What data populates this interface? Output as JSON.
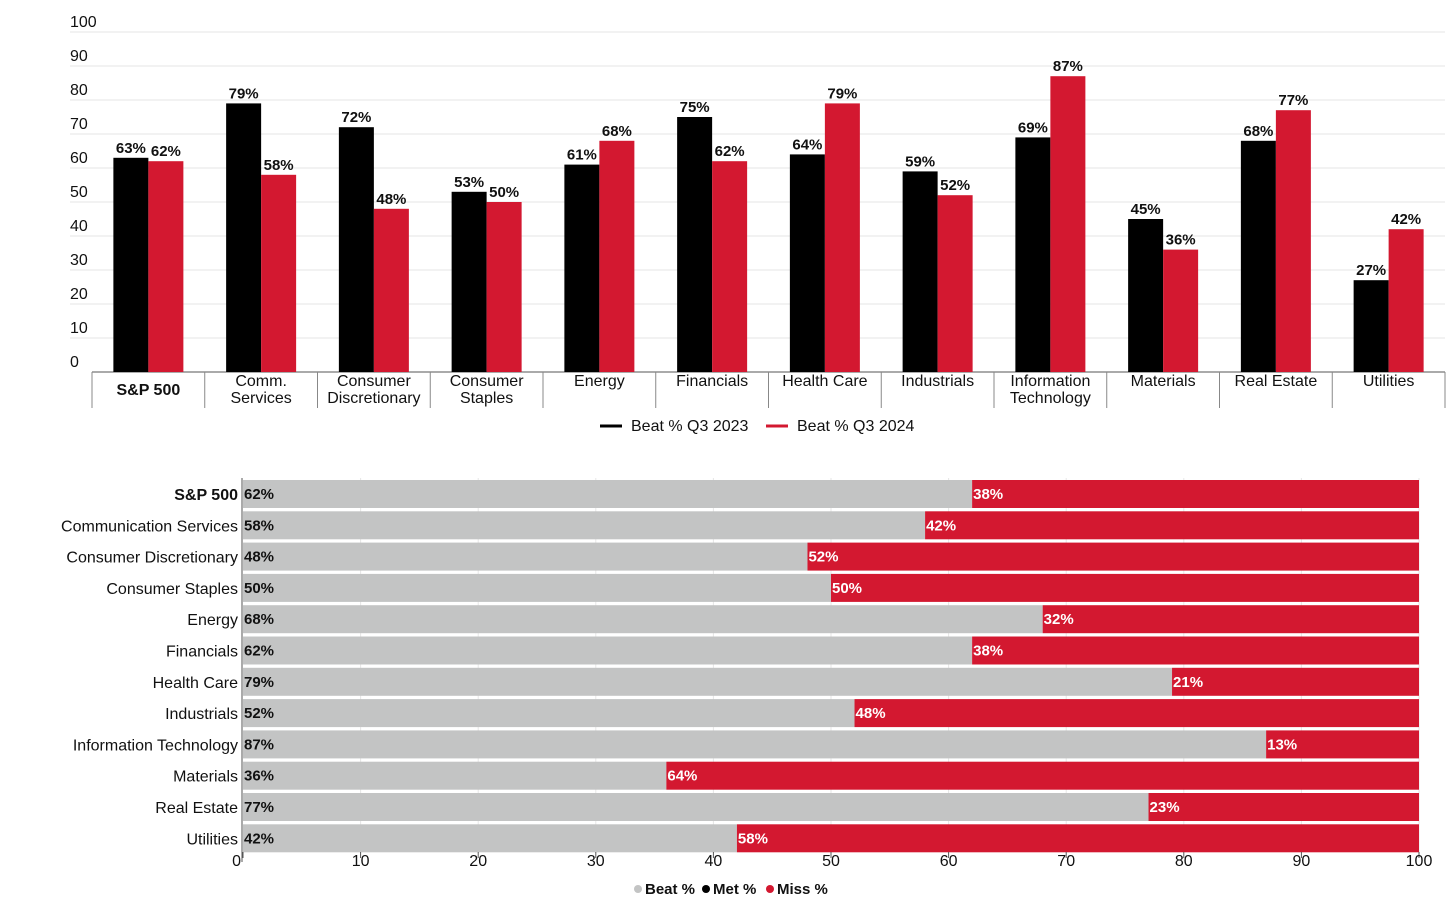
{
  "colors": {
    "q3_2023": "#000000",
    "q3_2024": "#d31830",
    "beat": "#c3c4c4",
    "met": "#000000",
    "miss": "#d31830"
  },
  "chart_data": [
    {
      "type": "bar",
      "title": "",
      "xlabel": "",
      "ylabel": "",
      "ylim": [
        0,
        100
      ],
      "yticks": [
        0,
        10,
        20,
        30,
        40,
        50,
        60,
        70,
        80,
        90,
        100
      ],
      "categories": [
        [
          "S&P 500"
        ],
        [
          "Comm.",
          "Services"
        ],
        [
          "Consumer",
          "Discretionary"
        ],
        [
          "Consumer",
          "Staples"
        ],
        [
          "Energy"
        ],
        [
          "Financials"
        ],
        [
          "Health Care"
        ],
        [
          "Industrials"
        ],
        [
          "Information",
          "Technology"
        ],
        [
          "Materials"
        ],
        [
          "Real Estate"
        ],
        [
          "Utilities"
        ]
      ],
      "series": [
        {
          "name": "Beat % Q3 2023",
          "values": [
            63,
            79,
            72,
            53,
            61,
            75,
            64,
            59,
            69,
            45,
            68,
            27
          ],
          "labels": [
            "63%",
            "79%",
            "72%",
            "53%",
            "61%",
            "75%",
            "64%",
            "59%",
            "69%",
            "45%",
            "68%",
            "27%"
          ]
        },
        {
          "name": "Beat % Q3 2024",
          "values": [
            62,
            58,
            48,
            50,
            68,
            62,
            79,
            52,
            87,
            36,
            77,
            42
          ],
          "labels": [
            "62%",
            "58%",
            "48%",
            "50%",
            "68%",
            "62%",
            "79%",
            "52%",
            "87%",
            "36%",
            "77%",
            "42%"
          ]
        }
      ],
      "legend": "bottom-center"
    },
    {
      "type": "stacked-bar-horizontal",
      "title": "",
      "xlabel": "",
      "ylabel": "",
      "xlim": [
        0,
        100
      ],
      "xticks": [
        0,
        10,
        20,
        30,
        40,
        50,
        60,
        70,
        80,
        90,
        100
      ],
      "categories": [
        "S&P 500",
        "Communication Services",
        "Consumer Discretionary",
        "Consumer Staples",
        "Energy",
        "Financials",
        "Health Care",
        "Industrials",
        "Information Technology",
        "Materials",
        "Real Estate",
        "Utilities"
      ],
      "series": [
        {
          "name": "Beat %",
          "values": [
            62,
            58,
            48,
            50,
            68,
            62,
            79,
            52,
            87,
            36,
            77,
            42
          ],
          "labels": [
            "62%",
            "58%",
            "48%",
            "50%",
            "68%",
            "62%",
            "79%",
            "52%",
            "87%",
            "36%",
            "77%",
            "42%"
          ]
        },
        {
          "name": "Met %",
          "values": [
            0,
            0,
            0,
            0,
            0,
            0,
            0,
            0,
            0,
            0,
            0,
            0
          ]
        },
        {
          "name": "Miss %",
          "values": [
            38,
            42,
            52,
            50,
            32,
            38,
            21,
            48,
            13,
            64,
            23,
            58
          ],
          "labels": [
            "38%",
            "42%",
            "52%",
            "50%",
            "32%",
            "38%",
            "21%",
            "48%",
            "13%",
            "64%",
            "23%",
            "58%"
          ]
        }
      ],
      "legend": "bottom-center"
    }
  ]
}
